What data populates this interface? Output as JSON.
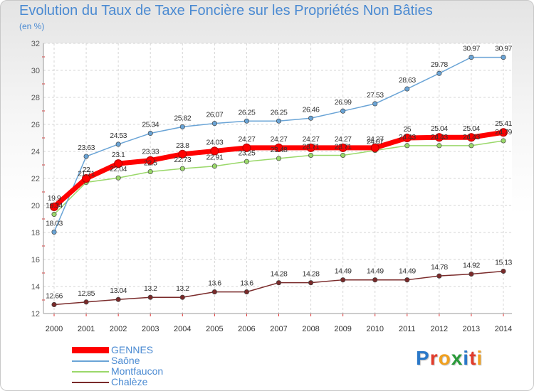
{
  "chart_data": {
    "type": "line",
    "title": "Evolution du Taux de Taxe Foncière sur les Propriétés Non Bâties",
    "subtitle": "(en %)",
    "categories": [
      "2000",
      "2001",
      "2002",
      "2003",
      "2004",
      "2005",
      "2006",
      "2007",
      "2008",
      "2009",
      "2010",
      "2011",
      "2012",
      "2013",
      "2014"
    ],
    "ylim": [
      12,
      32
    ],
    "yticks": [
      "12",
      "14",
      "16",
      "18",
      "20",
      "22",
      "24",
      "26",
      "28",
      "30",
      "32"
    ],
    "series": [
      {
        "name": "GENNES",
        "color": "#ff0000",
        "values": [
          19.9,
          22,
          23.1,
          23.33,
          23.8,
          24.03,
          24.27,
          24.27,
          24.27,
          24.27,
          24.27,
          25,
          25.04,
          25.04,
          25.41
        ],
        "labels": [
          "19.9",
          "22",
          "23.1",
          "23.33",
          "23.8",
          "24.03",
          "24.27",
          "24.27",
          "24.27",
          "24.27",
          "24.27",
          "25",
          "25.04",
          "25.04",
          "25.41"
        ]
      },
      {
        "name": "Saône",
        "color": "#6aa4d6",
        "values": [
          18.03,
          23.63,
          24.53,
          25.34,
          25.82,
          26.07,
          26.25,
          26.25,
          26.46,
          26.99,
          27.53,
          28.63,
          29.78,
          30.97,
          30.97
        ],
        "labels": [
          "18.03",
          "23.63",
          "24.53",
          "25.34",
          "25.82",
          "26.07",
          "26.25",
          "26.25",
          "26.46",
          "26.99",
          "27.53",
          "28.63",
          "29.78",
          "30.97",
          "30.97"
        ]
      },
      {
        "name": "Montfaucon",
        "color": "#9ad86a",
        "values": [
          19.34,
          21.71,
          22.04,
          22.5,
          22.73,
          22.91,
          23.25,
          23.48,
          23.71,
          23.71,
          24.07,
          24.43,
          24.43,
          24.43,
          24.79
        ],
        "labels": [
          "19.34",
          "21.71",
          "22.04",
          "22.5",
          "22.73",
          "22.91",
          "23.25",
          "23.48",
          "23.71",
          "23.71",
          "24.07",
          "24.43",
          "24.43",
          "24.43",
          "24.79"
        ]
      },
      {
        "name": "Chalèze",
        "color": "#7a2a2a",
        "values": [
          12.66,
          12.85,
          13.04,
          13.2,
          13.2,
          13.6,
          13.6,
          14.28,
          14.28,
          14.49,
          14.49,
          14.49,
          14.78,
          14.92,
          15.13
        ],
        "labels": [
          "12.66",
          "12.85",
          "13.04",
          "13.2",
          "13.2",
          "13.6",
          "13.6",
          "14.28",
          "14.28",
          "14.49",
          "14.49",
          "14.49",
          "14.78",
          "14.92",
          "15.13"
        ]
      }
    ],
    "legend_position": "bottom-left"
  },
  "logo": {
    "letters": [
      "P",
      "r",
      "o",
      "x",
      "i",
      "t",
      "i"
    ],
    "colors": [
      "#2a78c8",
      "#e23b2a",
      "#f0a020",
      "#2a9a3a",
      "#2a78c8",
      "#e23b2a",
      "#f0a020"
    ]
  }
}
